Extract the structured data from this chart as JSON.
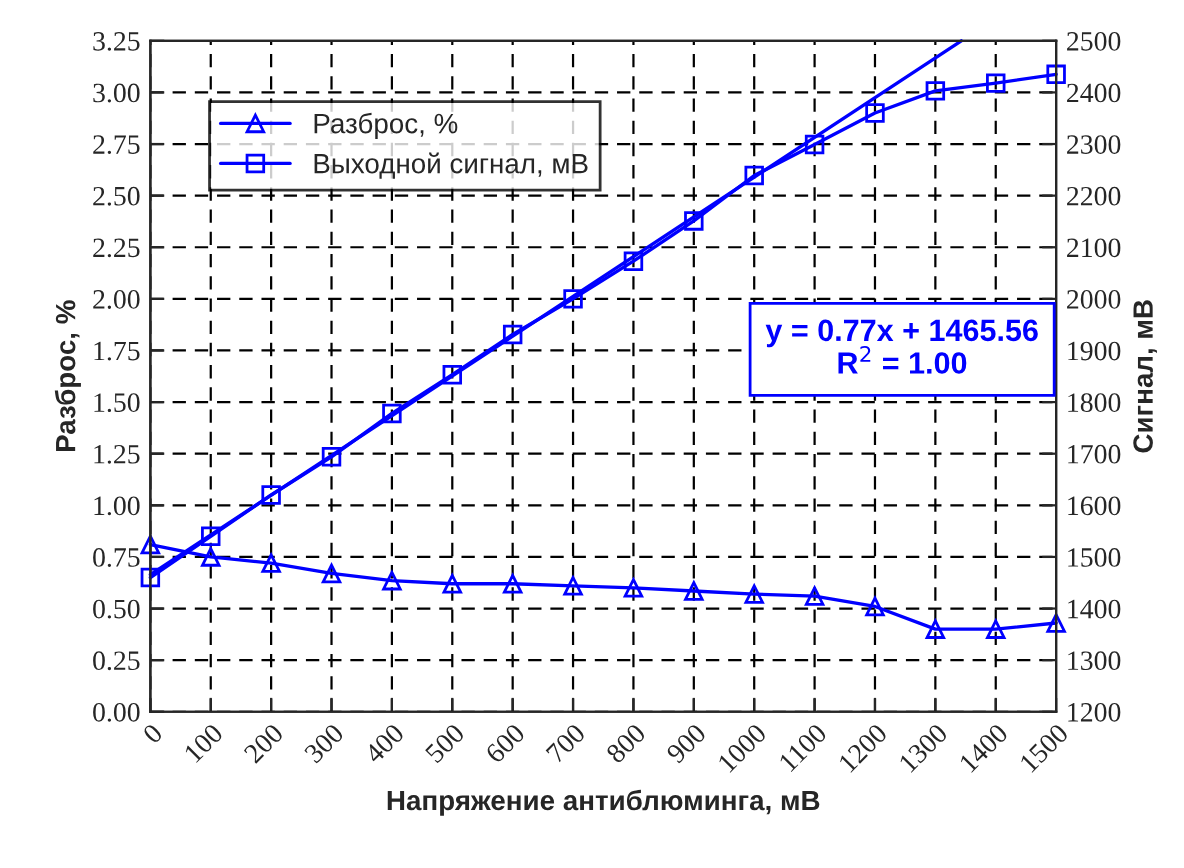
{
  "chart_data": {
    "type": "line",
    "xlabel": "Напряжение антиблюминга, мВ",
    "ylabel": "Разброс, %",
    "y2label": "Сигнал, мВ",
    "x": [
      0,
      100,
      200,
      300,
      400,
      500,
      600,
      700,
      800,
      900,
      1000,
      1100,
      1200,
      1300,
      1400,
      1500
    ],
    "series": [
      {
        "name": "Разброс, %",
        "color": "#0000ff",
        "marker": "triangle",
        "values": [
          0.81,
          0.75,
          0.72,
          0.67,
          0.635,
          0.62,
          0.62,
          0.61,
          0.6,
          0.585,
          0.57,
          0.56,
          0.51,
          0.4,
          0.4,
          0.43
        ]
      },
      {
        "name": "Выходной сигнал, мВ",
        "color": "#0000ff",
        "marker": "square",
        "axis": "y2",
        "values": [
          1460,
          1540,
          1620,
          1694,
          1778,
          1853,
          1931,
          2000,
          2073,
          2151,
          2239,
          2299,
          2360,
          2403,
          2418,
          2435
        ]
      },
      {
        "type": "line",
        "color": "#0000ff",
        "axis": "y2",
        "marker": "none",
        "x": [
          0,
          1343
        ],
        "values": [
          1465.6,
          2500
        ]
      }
    ],
    "xlim": [
      0,
      1500
    ],
    "xticks": [
      0,
      100,
      200,
      300,
      400,
      500,
      600,
      700,
      800,
      900,
      1000,
      1100,
      1200,
      1300,
      1400,
      1500
    ],
    "ylim": [
      0,
      3.25
    ],
    "yticks": [
      {
        "value": 0,
        "label": "0.00"
      },
      {
        "value": 0.25,
        "label": "0.25"
      },
      {
        "value": 0.5,
        "label": "0.50"
      },
      {
        "value": 0.75,
        "label": "0.75"
      },
      {
        "value": 1,
        "label": "1.00"
      },
      {
        "value": 1.25,
        "label": "1.25"
      },
      {
        "value": 1.5,
        "label": "1.50"
      },
      {
        "value": 1.75,
        "label": "1.75"
      },
      {
        "value": 2,
        "label": "2.00"
      },
      {
        "value": 2.25,
        "label": "2.25"
      },
      {
        "value": 2.5,
        "label": "2.50"
      },
      {
        "value": 2.75,
        "label": "2.75"
      },
      {
        "value": 3,
        "label": "3.00"
      },
      {
        "value": 3.25,
        "label": "3.25"
      }
    ],
    "y2lim": [
      1200,
      2500
    ],
    "y2ticks": [
      1200,
      1300,
      1400,
      1500,
      1600,
      1700,
      1800,
      1900,
      2000,
      2100,
      2200,
      2300,
      2400,
      2500
    ],
    "annotations": [
      "y = 0.77x + 1465.56\nR$^{2}$ = 1.00"
    ],
    "grid": true,
    "legend": "top left",
    "line_style": "solid"
  }
}
